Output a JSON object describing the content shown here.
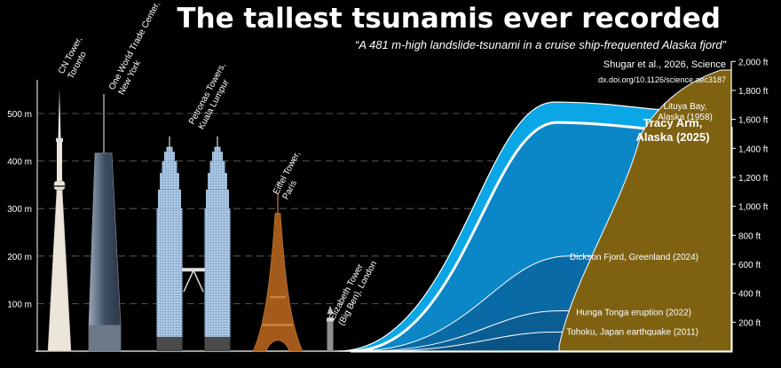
{
  "title": "The tallest tsunamis ever recorded",
  "subtitle": "“A 481 m-high landslide-tsunami in a cruise ship-frequented Alaska fjord”",
  "source": "Shugar et al., 2026, Science",
  "doi": "dx.doi.org/10.1126/science.aec3187",
  "colors": {
    "background": "#000000",
    "lituya": "#0aa6e6",
    "tracy": "#0b86c6",
    "dickson": "#0a6aa6",
    "hunga": "#0b5e93",
    "tohoku": "#0c5486",
    "land": "#7e6212",
    "eiffel": "#a45a1a"
  },
  "chart_data": {
    "type": "area",
    "y_left": {
      "unit": "m",
      "range": [
        0,
        555
      ],
      "ticks": [
        100,
        200,
        300,
        400,
        500
      ],
      "tick_labels": [
        "100 m",
        "200 m",
        "300 m",
        "400 m",
        "500 m"
      ]
    },
    "y_right": {
      "unit": "ft",
      "ticks": [
        200,
        400,
        600,
        800,
        1000,
        1200,
        1400,
        1600,
        1800,
        2000
      ],
      "tick_labels": [
        "200 ft",
        "400 ft",
        "600 ft",
        "800 ft",
        "1,000 ft",
        "1,200 ft",
        "1,400 ft",
        "1,600 ft",
        "1,800 ft",
        "2,000 ft"
      ]
    },
    "grid": "dashed",
    "buildings": [
      {
        "name": "CN Tower",
        "label_lines": [
          "CN Tower,",
          "Toronto"
        ],
        "height_m": 553
      },
      {
        "name": "One World Trade Center",
        "label_lines": [
          "One World Trade Center,",
          "New York"
        ],
        "height_m": 541
      },
      {
        "name": "Petronas Towers",
        "label_lines": [
          "Petronas Towers,",
          "Kuala Lumpur"
        ],
        "height_m": 452
      },
      {
        "name": "Eiffel Tower",
        "label_lines": [
          "Eiffel Tower,",
          "Paris"
        ],
        "height_m": 330
      },
      {
        "name": "Elizabeth Tower",
        "label_lines": [
          "Elizabeth Tower",
          "(Big Ben), London"
        ],
        "height_m": 96
      }
    ],
    "tsunamis": [
      {
        "name": "Lituya Bay",
        "label_lines": [
          "Lituya Bay,",
          "Alaska (1958)"
        ],
        "height_m": 524
      },
      {
        "name": "Tracy Arm",
        "label_lines": [
          "Tracy Arm,",
          "Alaska (2025)"
        ],
        "height_m": 481
      },
      {
        "name": "Dickson Fjord",
        "label_lines": [
          "Dickson Fjord, Greenland (2024)"
        ],
        "height_m": 200
      },
      {
        "name": "Hunga Tonga",
        "label_lines": [
          "Hunga Tonga eruption (2022)"
        ],
        "height_m": 85
      },
      {
        "name": "Tohoku",
        "label_lines": [
          "Tohoku, Japan earthquake (2011)"
        ],
        "height_m": 40
      }
    ]
  }
}
